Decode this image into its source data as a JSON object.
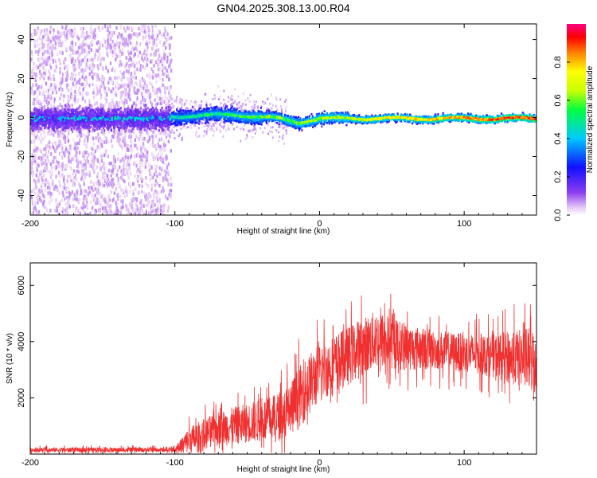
{
  "title": "GN04.2025.308.13.00.R04",
  "chart_data": [
    {
      "type": "heatmap",
      "xlabel": "Height of straight line (km)",
      "ylabel": "Frequency (Hz)",
      "xlim": [
        -200,
        150
      ],
      "ylim": [
        -50,
        48
      ],
      "xticks": [
        "-200",
        "-100",
        "0",
        "100"
      ],
      "yticks": [
        "40",
        "20",
        "0",
        "-20",
        "-40"
      ],
      "colorbar": {
        "label": "Normalized spectral amplitude",
        "range": [
          0,
          1
        ],
        "ticks": [
          "0.0",
          "0.2",
          "0.4",
          "0.6",
          "0.8"
        ]
      },
      "description_points": {
        "dense_scatter_xrange": [
          -200,
          -103
        ],
        "ridge_center_hz": [
          {
            "x": -100,
            "y": 1
          },
          {
            "x": -60,
            "y": 2
          },
          {
            "x": -30,
            "y": 0
          },
          {
            "x": -15,
            "y": -2
          },
          {
            "x": 0,
            "y": 0
          },
          {
            "x": 50,
            "y": 0
          },
          {
            "x": 100,
            "y": 0
          },
          {
            "x": 150,
            "y": 0
          }
        ]
      }
    },
    {
      "type": "line",
      "xlabel": "Height of straight line (km)",
      "ylabel": "SNR (10 * v/v)",
      "xlim": [
        -200,
        150
      ],
      "ylim": [
        0,
        6800
      ],
      "xticks": [
        "-200",
        "-100",
        "0",
        "100"
      ],
      "yticks": [
        "6000",
        "4000",
        "2000"
      ],
      "color": "#f03030",
      "series": [
        {
          "name": "SNR",
          "envelope": [
            {
              "x": -200,
              "base": 150,
              "spread": 120
            },
            {
              "x": -100,
              "base": 150,
              "spread": 120
            },
            {
              "x": -90,
              "base": 500,
              "spread": 700
            },
            {
              "x": -70,
              "base": 900,
              "spread": 900
            },
            {
              "x": -50,
              "base": 1100,
              "spread": 1000
            },
            {
              "x": -30,
              "base": 1300,
              "spread": 1200
            },
            {
              "x": -20,
              "base": 1600,
              "spread": 1500
            },
            {
              "x": -10,
              "base": 2300,
              "spread": 1600
            },
            {
              "x": 0,
              "base": 2900,
              "spread": 1500
            },
            {
              "x": 20,
              "base": 3500,
              "spread": 1500
            },
            {
              "x": 40,
              "base": 4100,
              "spread": 1500
            },
            {
              "x": 60,
              "base": 3800,
              "spread": 1200
            },
            {
              "x": 80,
              "base": 3700,
              "spread": 1000
            },
            {
              "x": 100,
              "base": 3600,
              "spread": 1000
            },
            {
              "x": 120,
              "base": 3500,
              "spread": 1100
            },
            {
              "x": 140,
              "base": 3400,
              "spread": 1500
            },
            {
              "x": 150,
              "base": 3300,
              "spread": 1800
            }
          ]
        }
      ]
    }
  ]
}
